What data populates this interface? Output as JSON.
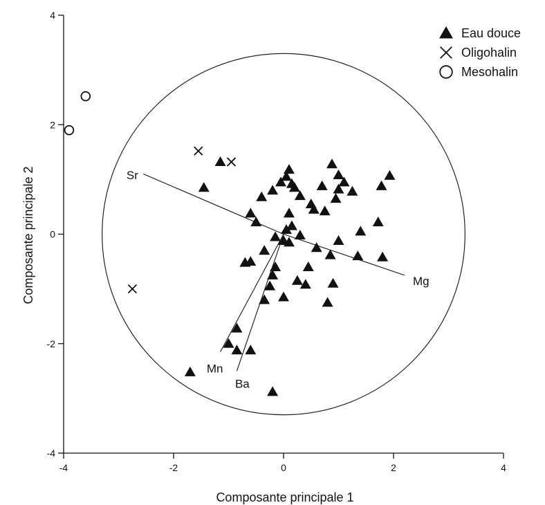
{
  "chart_data": {
    "type": "scatter",
    "xlabel": "Composante principale 1",
    "ylabel": "Composante principale 2",
    "xlim": [
      -4,
      4
    ],
    "ylim": [
      -4,
      4
    ],
    "xticks": [
      "-4",
      "-2",
      "0",
      "2",
      "4"
    ],
    "yticks": [
      "-4",
      "-2",
      "0",
      "2",
      "4"
    ],
    "grid": false,
    "legend_position": "top-right",
    "correlation_circle": {
      "center": [
        0,
        0
      ],
      "radius_units": 3.3
    },
    "series": [
      {
        "name": "Eau douce",
        "marker": "filled-triangle",
        "points": [
          [
            0.1,
            1.18
          ],
          [
            0.05,
            1.05
          ],
          [
            0.15,
            0.92
          ],
          [
            0.2,
            0.85
          ],
          [
            -0.05,
            0.95
          ],
          [
            -0.2,
            0.8
          ],
          [
            -0.4,
            0.68
          ],
          [
            0.3,
            0.7
          ],
          [
            0.5,
            0.55
          ],
          [
            0.55,
            0.45
          ],
          [
            0.7,
            0.88
          ],
          [
            0.88,
            1.28
          ],
          [
            1.0,
            1.08
          ],
          [
            1.1,
            0.95
          ],
          [
            1.0,
            0.82
          ],
          [
            1.25,
            0.78
          ],
          [
            0.95,
            0.65
          ],
          [
            1.93,
            1.07
          ],
          [
            1.78,
            0.88
          ],
          [
            0.75,
            0.42
          ],
          [
            0.1,
            0.38
          ],
          [
            -0.6,
            0.38
          ],
          [
            -0.5,
            0.22
          ],
          [
            0.15,
            0.15
          ],
          [
            0.05,
            0.08
          ],
          [
            1.72,
            0.22
          ],
          [
            1.4,
            0.05
          ],
          [
            -0.15,
            -0.05
          ],
          [
            0.0,
            -0.12
          ],
          [
            0.3,
            -0.02
          ],
          [
            0.1,
            -0.15
          ],
          [
            1.0,
            -0.12
          ],
          [
            0.6,
            -0.25
          ],
          [
            -0.7,
            -0.52
          ],
          [
            -0.6,
            -0.5
          ],
          [
            -0.35,
            -0.3
          ],
          [
            -0.15,
            -0.6
          ],
          [
            0.85,
            -0.38
          ],
          [
            0.45,
            -0.6
          ],
          [
            1.35,
            -0.4
          ],
          [
            1.8,
            -0.42
          ],
          [
            -0.2,
            -0.75
          ],
          [
            0.25,
            -0.85
          ],
          [
            0.4,
            -0.92
          ],
          [
            0.9,
            -0.9
          ],
          [
            -0.25,
            -0.95
          ],
          [
            -0.35,
            -1.2
          ],
          [
            0.0,
            -1.15
          ],
          [
            0.8,
            -1.25
          ],
          [
            -0.85,
            -1.72
          ],
          [
            -1.0,
            -2.0
          ],
          [
            -0.85,
            -2.12
          ],
          [
            -0.6,
            -2.12
          ],
          [
            -1.7,
            -2.52
          ],
          [
            -0.2,
            -2.88
          ],
          [
            -1.45,
            0.85
          ],
          [
            -1.15,
            1.32
          ]
        ]
      },
      {
        "name": "Oligohalin",
        "marker": "cross",
        "points": [
          [
            -1.55,
            1.52
          ],
          [
            -0.95,
            1.32
          ],
          [
            -2.75,
            -1.0
          ]
        ]
      },
      {
        "name": "Mesohalin",
        "marker": "open-circle",
        "points": [
          [
            -3.6,
            2.52
          ],
          [
            -3.9,
            1.9
          ]
        ]
      }
    ],
    "loadings": [
      {
        "label": "Sr",
        "end": [
          -2.55,
          1.1
        ],
        "label_at": [
          -2.75,
          1.08
        ]
      },
      {
        "label": "Mg",
        "end": [
          2.2,
          -0.75
        ],
        "label_at": [
          2.5,
          -0.85
        ]
      },
      {
        "label": "Mn",
        "end": [
          -1.15,
          -2.15
        ],
        "label_at": [
          -1.25,
          -2.45
        ]
      },
      {
        "label": "Ba",
        "end": [
          -0.85,
          -2.5
        ],
        "label_at": [
          -0.75,
          -2.73
        ]
      }
    ]
  }
}
